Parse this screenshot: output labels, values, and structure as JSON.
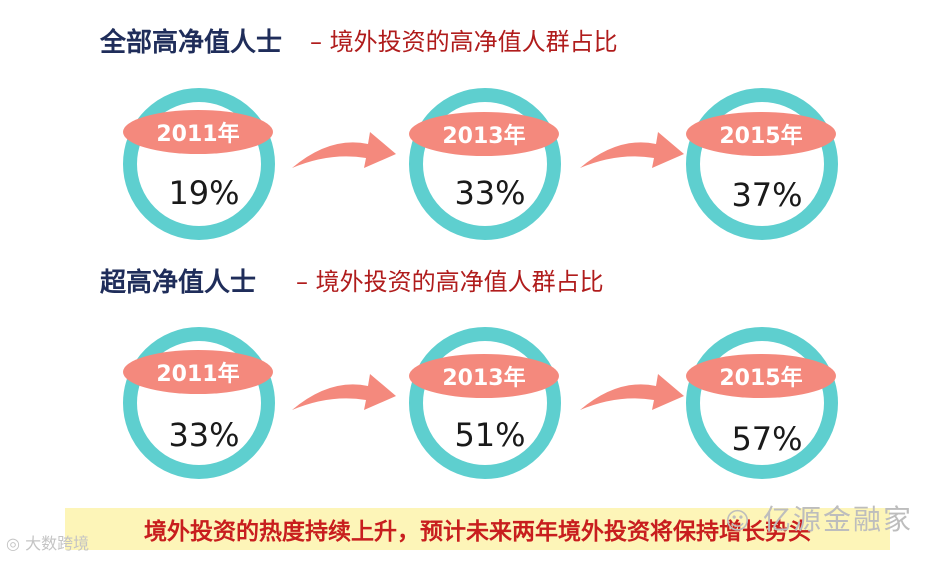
{
  "sections": [
    {
      "title": "全部高净值人士",
      "subtitle": "– 境外投资的高净值人群占比",
      "items": [
        {
          "year": "2011年",
          "percent": "19%"
        },
        {
          "year": "2013年",
          "percent": "33%"
        },
        {
          "year": "2015年",
          "percent": "37%"
        }
      ]
    },
    {
      "title": "超高净值人士",
      "subtitle": "– 境外投资的高净值人群占比",
      "items": [
        {
          "year": "2011年",
          "percent": "33%"
        },
        {
          "year": "2013年",
          "percent": "51%"
        },
        {
          "year": "2015年",
          "percent": "57%"
        }
      ]
    }
  ],
  "banner": "境外投资的热度持续上升，预计未来两年境外投资将保持增长势头",
  "watermark_right": "亿源金融家",
  "watermark_left": "大数跨境",
  "colors": {
    "ring": "#5ecfcf",
    "pill": "#f4897d",
    "arrow": "#f4897d",
    "title": "#1f2d5a",
    "subtitle": "#b01c1c",
    "banner_bg": "#fdf5b8",
    "banner_text": "#c81e1e"
  }
}
